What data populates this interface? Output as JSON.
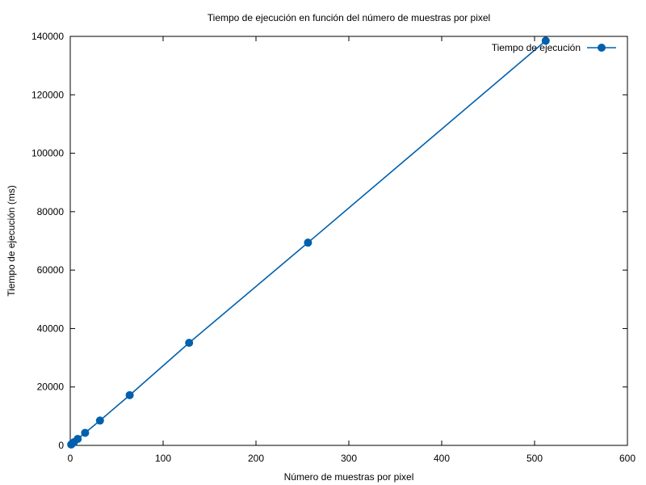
{
  "chart_data": {
    "type": "line",
    "title": "Tiempo de ejecución en función del número de muestras por pixel",
    "xlabel": "Número de muestras por pixel",
    "ylabel": "Tiempo de ejecución (ms)",
    "xlim": [
      0,
      600
    ],
    "ylim": [
      0,
      140000
    ],
    "xticks": [
      0,
      100,
      200,
      300,
      400,
      500,
      600
    ],
    "yticks": [
      0,
      20000,
      40000,
      60000,
      80000,
      100000,
      120000,
      140000
    ],
    "grid": false,
    "legend_position": "top-right",
    "series": [
      {
        "name": "Tiempo de ejecución",
        "color": "#0060ad",
        "x": [
          1,
          2,
          4,
          8,
          16,
          32,
          64,
          128,
          256,
          512
        ],
        "y": [
          300,
          600,
          1100,
          2200,
          4300,
          8500,
          17200,
          35100,
          69400,
          138500
        ]
      }
    ]
  }
}
